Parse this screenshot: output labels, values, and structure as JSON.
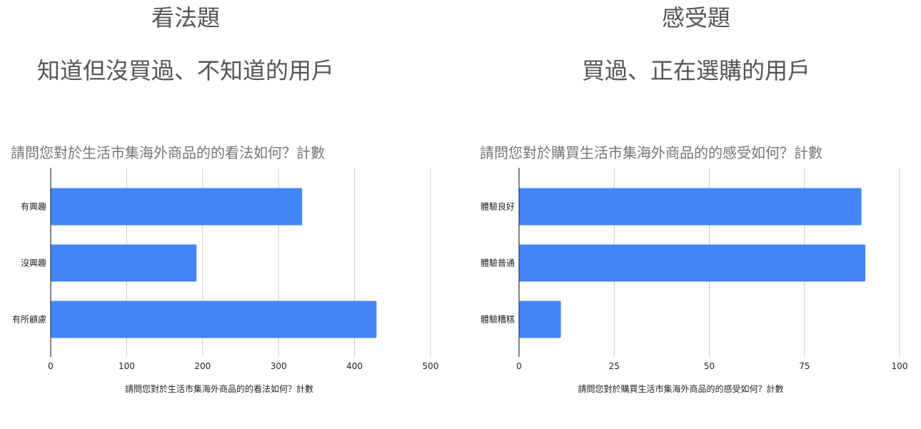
{
  "panels": [
    {
      "heading": "看法題",
      "subheading": "知道但沒買過、不知道的用戶",
      "chart_title": "請問您對於生活市集海外商品的的看法如何？計數"
    },
    {
      "heading": "感受題",
      "subheading": "買過、正在選購的用戶",
      "chart_title": "請問您對於購買生活市集海外商品的的感受如何？計數"
    }
  ],
  "colors": {
    "bar": "#4285f4",
    "grid": "#cccccc",
    "axis": "#333333"
  },
  "chart_data": [
    {
      "type": "bar",
      "orientation": "horizontal",
      "title": "請問您對於生活市集海外商品的的看法如何？計數",
      "categories": [
        "有興趣",
        "沒興趣",
        "有所顧慮"
      ],
      "values": [
        331,
        192,
        429
      ],
      "xlabel": "請問您對於生活市集海外商品的的看法如何？計數",
      "ylabel": "",
      "xlim": [
        0,
        500
      ],
      "xticks": [
        "0",
        "100",
        "200",
        "300",
        "400",
        "500"
      ],
      "grid": true,
      "legend": "none"
    },
    {
      "type": "bar",
      "orientation": "horizontal",
      "title": "請問您對於購買生活市集海外商品的的感受如何？計數",
      "categories": [
        "體驗良好",
        "體驗普通",
        "體驗糟糕"
      ],
      "values": [
        90,
        91,
        11
      ],
      "xlabel": "請問您對於購買生活市集海外商品的的感受如何？計數",
      "ylabel": "",
      "xlim": [
        0,
        100
      ],
      "xticks": [
        "0",
        "25",
        "50",
        "75",
        "100"
      ],
      "grid": true,
      "legend": "none"
    }
  ]
}
